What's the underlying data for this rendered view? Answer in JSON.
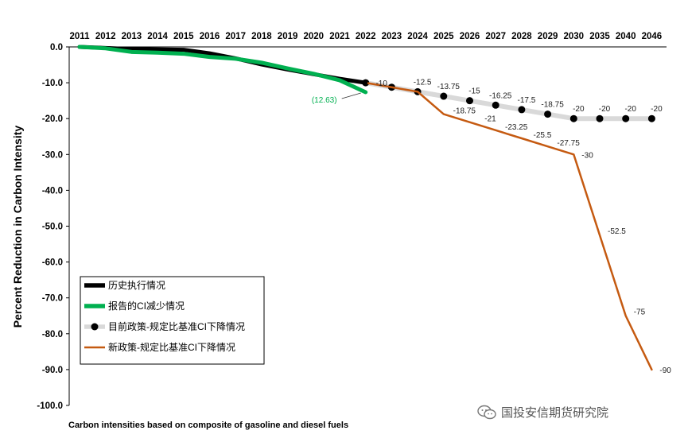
{
  "chart_data": {
    "type": "line",
    "categories": [
      "2011",
      "2012",
      "2013",
      "2014",
      "2015",
      "2016",
      "2017",
      "2018",
      "2019",
      "2020",
      "2021",
      "2022",
      "2023",
      "2024",
      "2025",
      "2026",
      "2027",
      "2028",
      "2029",
      "2030",
      "2035",
      "2040",
      "2046"
    ],
    "ylabel": "Percent Reduction in Carbon Intensity",
    "ylim": [
      -100,
      0
    ],
    "yticks": [
      "0.0",
      "-10.0",
      "-20.0",
      "-30.0",
      "-40.0",
      "-50.0",
      "-60.0",
      "-70.0",
      "-80.0",
      "-90.0",
      "-100.0"
    ],
    "grid": false,
    "legend_position": "bottom-left",
    "series": [
      {
        "name": "历史执行情况",
        "color": "#000000",
        "x": [
          "2011",
          "2012",
          "2013",
          "2014",
          "2015",
          "2016",
          "2017",
          "2018",
          "2019",
          "2020",
          "2021",
          "2022"
        ],
        "values": [
          0,
          -0.3,
          -0.6,
          -0.7,
          -0.8,
          -1.8,
          -3.2,
          -4.9,
          -6.3,
          -7.6,
          -8.9,
          -10.0
        ]
      },
      {
        "name": "报告的CI减少情况",
        "color": "#00b050",
        "x": [
          "2011",
          "2012",
          "2013",
          "2014",
          "2015",
          "2016",
          "2017",
          "2018",
          "2019",
          "2020",
          "2021",
          "2022"
        ],
        "values": [
          0,
          -0.4,
          -1.4,
          -1.6,
          -1.9,
          -2.8,
          -3.3,
          -4.4,
          -6.0,
          -7.5,
          -9.3,
          -12.63
        ]
      },
      {
        "name": "目前政策-规定比基准CI下降情况",
        "color": "#d9d9d9",
        "marker_color": "#000000",
        "x": [
          "2022",
          "2023",
          "2024",
          "2025",
          "2026",
          "2027",
          "2028",
          "2029",
          "2030",
          "2035",
          "2040",
          "2046"
        ],
        "values": [
          -10,
          -11.25,
          -12.5,
          -13.75,
          -15,
          -16.25,
          -17.5,
          -18.75,
          -20,
          -20,
          -20,
          -20
        ],
        "labels": [
          "-10",
          "",
          "-12.5",
          "-13.75",
          "-15",
          "-16.25",
          "-17.5",
          "-18.75",
          "-20",
          "-20",
          "-20",
          "-20"
        ]
      },
      {
        "name": "新政策-规定比基准CI下降情况",
        "color": "#c55a11",
        "x": [
          "2022",
          "2023",
          "2024",
          "2025",
          "2026",
          "2027",
          "2028",
          "2029",
          "2030",
          "2035",
          "2040",
          "2046"
        ],
        "values": [
          -10,
          -11.25,
          -12.5,
          -18.75,
          -21,
          -23.25,
          -25.5,
          -27.75,
          -30,
          -52.5,
          -75,
          -90
        ],
        "labels": [
          "",
          "",
          "",
          "-18.75",
          "-21",
          "-23.25",
          "-25.5",
          "-27.75",
          "-30",
          "-52.5",
          "-75",
          "-90"
        ]
      }
    ],
    "annotations": [
      {
        "text": "(12.63)",
        "x": "2022",
        "y": -12.63,
        "color": "#00b050"
      }
    ]
  },
  "footnote": "Carbon intensities based on composite of gasoline and diesel fuels",
  "watermark": {
    "text": "国投安信期货研究院",
    "icon": "wechat-icon"
  }
}
